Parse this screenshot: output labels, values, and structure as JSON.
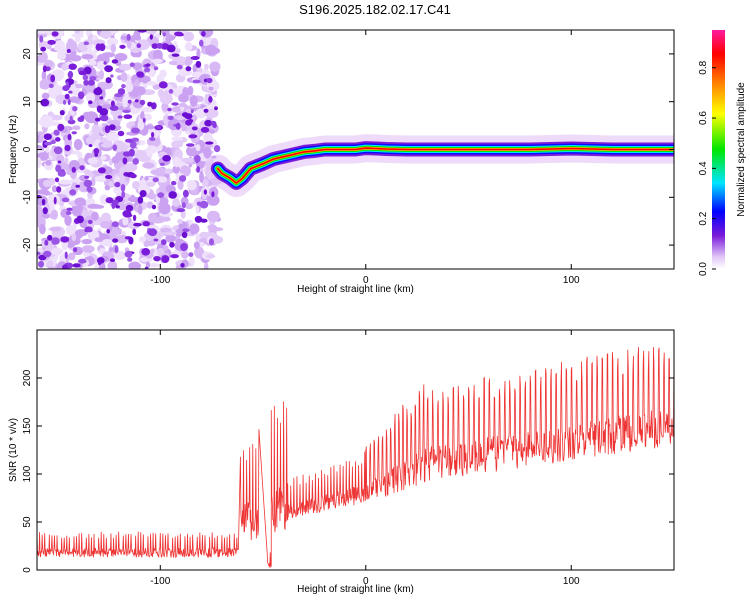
{
  "title": "S196.2025.182.02.17.C41",
  "chart_data": [
    {
      "type": "heatmap",
      "name": "spectrogram",
      "xlabel": "Height of straight line (km)",
      "ylabel": "Frequency (Hz)",
      "xlim": [
        -160,
        150
      ],
      "ylim": [
        -25,
        25
      ],
      "xticks": [
        -100,
        0,
        100
      ],
      "yticks": [
        -20,
        -10,
        0,
        10,
        20
      ],
      "colorbar": {
        "label": "Normalized spectral amplitude",
        "range": [
          0.0,
          0.95
        ],
        "ticks": [
          0.0,
          0.2,
          0.4,
          0.6,
          0.8
        ],
        "colors": [
          "#ffffff",
          "#d6b4f5",
          "#7a1bd9",
          "#0000ff",
          "#00e5ff",
          "#00e600",
          "#ffff00",
          "#ff7f00",
          "#ff0000",
          "#ff1aa0"
        ]
      },
      "noise_region": {
        "x": [
          -160,
          -72
        ],
        "y": [
          -25,
          25
        ]
      },
      "ridge": {
        "x": [
          -72,
          -70,
          -66,
          -63,
          -60,
          -56,
          -50,
          -45,
          -40,
          -35,
          -30,
          -25,
          -20,
          -15,
          -10,
          -5,
          0,
          5,
          10,
          20,
          40,
          60,
          80,
          100,
          120,
          150
        ],
        "frequency": [
          -4,
          -5,
          -6,
          -7,
          -6,
          -4,
          -3,
          -2,
          -1.5,
          -1,
          -0.5,
          -0.3,
          0,
          0,
          0,
          0,
          0.3,
          0.2,
          0.1,
          0,
          0,
          0,
          0,
          0.2,
          0,
          0
        ]
      }
    },
    {
      "type": "line",
      "name": "snr",
      "xlabel": "Height of straight line (km)",
      "ylabel": "SNR (10 * v/v)",
      "xlim": [
        -160,
        150
      ],
      "ylim": [
        0,
        250
      ],
      "xticks": [
        -100,
        0,
        100
      ],
      "yticks": [
        0,
        50,
        100,
        150,
        200
      ],
      "color": "#ee3333",
      "segments": [
        {
          "x": [
            -160,
            -62
          ],
          "base": [
            18,
            18
          ],
          "spike": [
            40,
            40
          ],
          "period": 1.2
        },
        {
          "x": [
            -61,
            -52
          ],
          "base": [
            60,
            40
          ],
          "spike": [
            130,
            150
          ],
          "period": 1.5
        },
        {
          "x": [
            -48,
            -46
          ],
          "base": [
            5,
            5
          ],
          "spike": [
            20,
            20
          ],
          "period": 1.5
        },
        {
          "x": [
            -46,
            -38
          ],
          "base": [
            60,
            60
          ],
          "spike": [
            170,
            180
          ],
          "period": 1.5
        },
        {
          "x": [
            -38,
            0
          ],
          "base": [
            60,
            80
          ],
          "spike": [
            95,
            125
          ],
          "period": 1.5
        },
        {
          "x": [
            0,
            30
          ],
          "base": [
            80,
            110
          ],
          "spike": [
            130,
            200
          ],
          "period": 2.0
        },
        {
          "x": [
            30,
            150
          ],
          "base": [
            110,
            150
          ],
          "spike": [
            190,
            240
          ],
          "period": 2.5
        }
      ]
    }
  ]
}
